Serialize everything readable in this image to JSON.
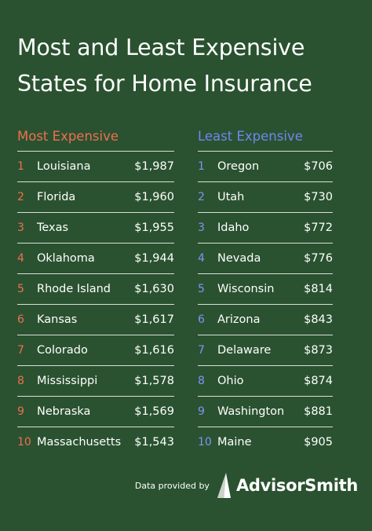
{
  "title": {
    "line1": "Most and Least Expensive",
    "line2": "States for Home Insurance"
  },
  "most_expensive": {
    "heading": "Most Expensive",
    "rows": [
      {
        "rank": "1",
        "state": "Louisiana",
        "cost": "$1,987"
      },
      {
        "rank": "2",
        "state": "Florida",
        "cost": "$1,960"
      },
      {
        "rank": "3",
        "state": "Texas",
        "cost": "$1,955"
      },
      {
        "rank": "4",
        "state": "Oklahoma",
        "cost": "$1,944"
      },
      {
        "rank": "5",
        "state": "Rhode Island",
        "cost": "$1,630"
      },
      {
        "rank": "6",
        "state": "Kansas",
        "cost": "$1,617"
      },
      {
        "rank": "7",
        "state": "Colorado",
        "cost": "$1,616"
      },
      {
        "rank": "8",
        "state": "Mississippi",
        "cost": "$1,578"
      },
      {
        "rank": "9",
        "state": "Nebraska",
        "cost": "$1,569"
      },
      {
        "rank": "10",
        "state": "Massachusetts",
        "cost": "$1,543"
      }
    ]
  },
  "least_expensive": {
    "heading": "Least Expensive",
    "rows": [
      {
        "rank": "1",
        "state": "Oregon",
        "cost": "$706"
      },
      {
        "rank": "2",
        "state": "Utah",
        "cost": "$730"
      },
      {
        "rank": "3",
        "state": "Idaho",
        "cost": "$772"
      },
      {
        "rank": "4",
        "state": "Nevada",
        "cost": "$776"
      },
      {
        "rank": "5",
        "state": "Wisconsin",
        "cost": "$814"
      },
      {
        "rank": "6",
        "state": "Arizona",
        "cost": "$843"
      },
      {
        "rank": "7",
        "state": "Delaware",
        "cost": "$873"
      },
      {
        "rank": "8",
        "state": "Ohio",
        "cost": "$874"
      },
      {
        "rank": "9",
        "state": "Washington",
        "cost": "$881"
      },
      {
        "rank": "10",
        "state": "Maine",
        "cost": "$905"
      }
    ]
  },
  "footer": {
    "provided_by": "Data provided by",
    "brand": "AdvisorSmith",
    "logo_icon": "advisorsmith-logo-icon"
  },
  "colors": {
    "background": "#2a5230",
    "most_accent": "#ef6f50",
    "least_accent": "#6f87f1",
    "divider": "#d9dfd9"
  }
}
